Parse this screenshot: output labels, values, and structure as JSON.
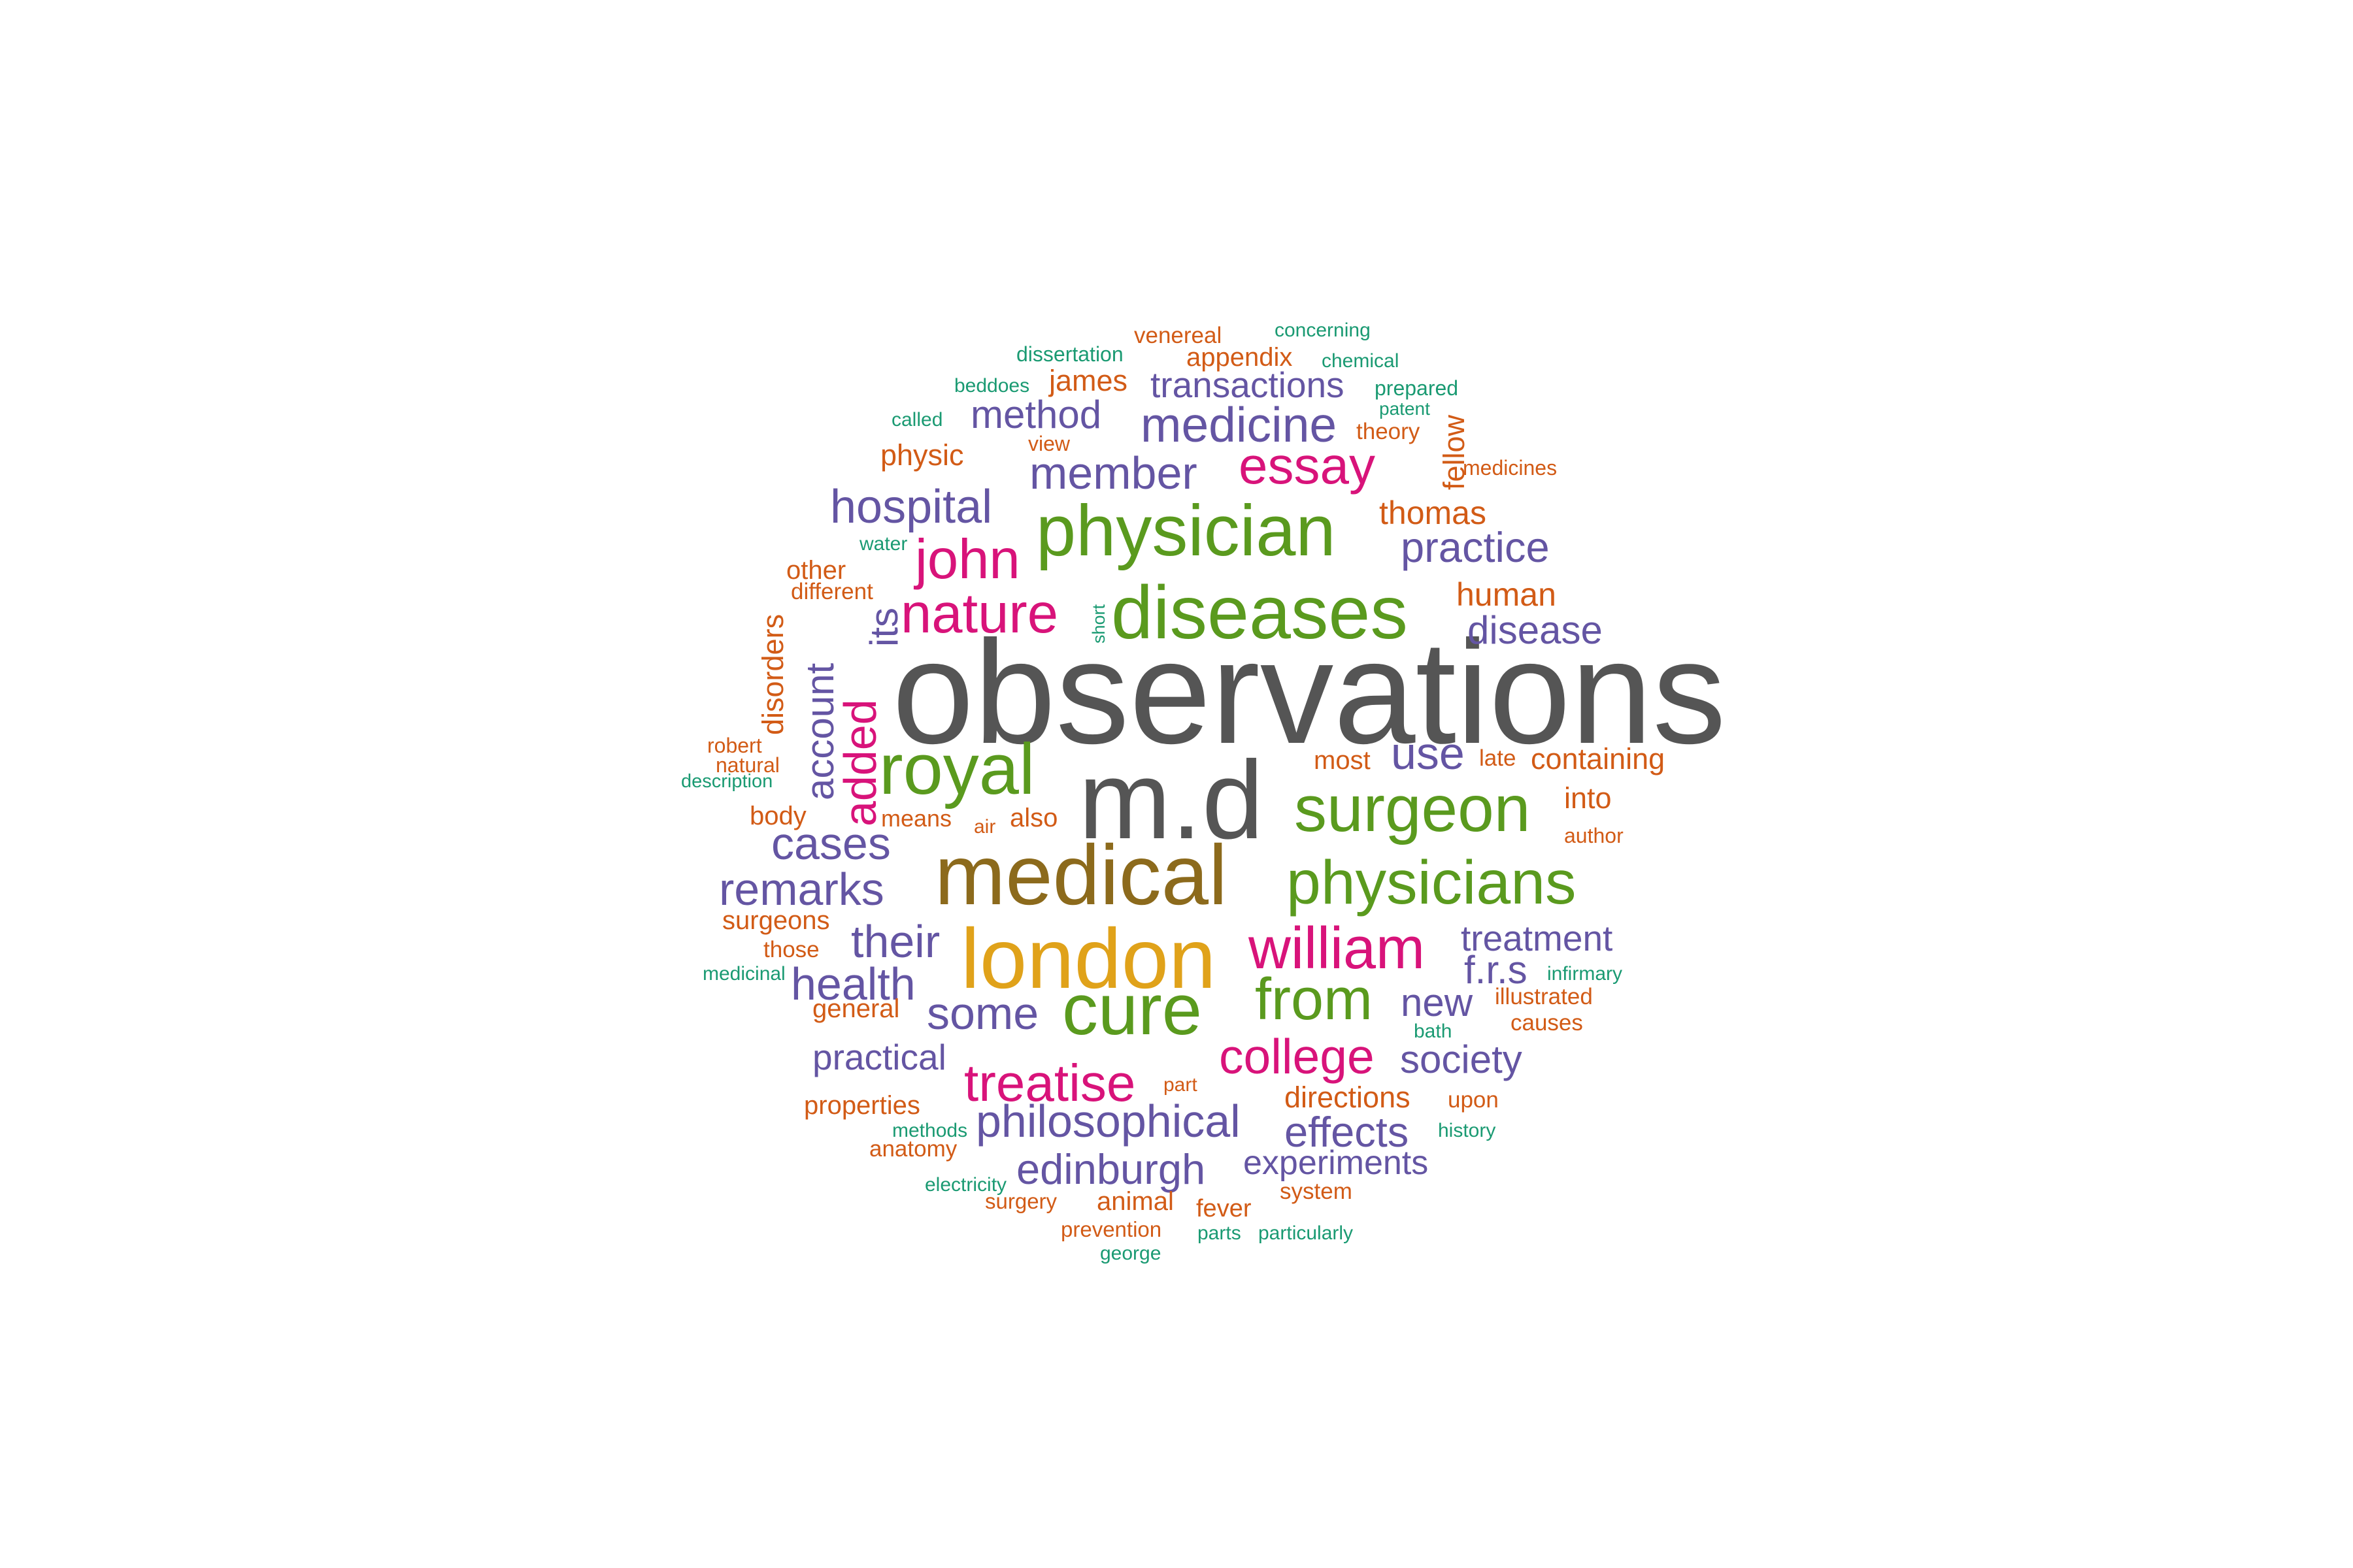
{
  "palette": {
    "gray": "#555555",
    "olive": "#8c6a1c",
    "gold": "#e0a21a",
    "green": "#5a9a1e",
    "magenta": "#d8137a",
    "purple": "#6455a3",
    "orange": "#d25b16",
    "teal": "#1a9a72"
  },
  "words": [
    {
      "text": "observations",
      "color": "gray"
    },
    {
      "text": "m.d",
      "color": "gray"
    },
    {
      "text": "medical",
      "color": "olive"
    },
    {
      "text": "london",
      "color": "gold"
    },
    {
      "text": "diseases",
      "color": "green"
    },
    {
      "text": "physician",
      "color": "green"
    },
    {
      "text": "surgeon",
      "color": "green"
    },
    {
      "text": "physicians",
      "color": "green"
    },
    {
      "text": "royal",
      "color": "green"
    },
    {
      "text": "cure",
      "color": "green"
    },
    {
      "text": "from",
      "color": "green"
    },
    {
      "text": "william",
      "color": "magenta"
    },
    {
      "text": "nature",
      "color": "magenta"
    },
    {
      "text": "john",
      "color": "magenta"
    },
    {
      "text": "essay",
      "color": "magenta"
    },
    {
      "text": "treatise",
      "color": "magenta"
    },
    {
      "text": "college",
      "color": "magenta"
    },
    {
      "text": "added",
      "color": "magenta"
    },
    {
      "text": "medicine",
      "color": "purple"
    },
    {
      "text": "member",
      "color": "purple"
    },
    {
      "text": "hospital",
      "color": "purple"
    },
    {
      "text": "method",
      "color": "purple"
    },
    {
      "text": "transactions",
      "color": "purple"
    },
    {
      "text": "practice",
      "color": "purple"
    },
    {
      "text": "disease",
      "color": "purple"
    },
    {
      "text": "use",
      "color": "purple"
    },
    {
      "text": "account",
      "color": "purple"
    },
    {
      "text": "its",
      "color": "purple"
    },
    {
      "text": "cases",
      "color": "purple"
    },
    {
      "text": "remarks",
      "color": "purple"
    },
    {
      "text": "their",
      "color": "purple"
    },
    {
      "text": "health",
      "color": "purple"
    },
    {
      "text": "some",
      "color": "purple"
    },
    {
      "text": "treatment",
      "color": "purple"
    },
    {
      "text": "f.r.s",
      "color": "purple"
    },
    {
      "text": "new",
      "color": "purple"
    },
    {
      "text": "practical",
      "color": "purple"
    },
    {
      "text": "society",
      "color": "purple"
    },
    {
      "text": "philosophical",
      "color": "purple"
    },
    {
      "text": "effects",
      "color": "purple"
    },
    {
      "text": "edinburgh",
      "color": "purple"
    },
    {
      "text": "experiments",
      "color": "purple"
    },
    {
      "text": "venereal",
      "color": "orange"
    },
    {
      "text": "appendix",
      "color": "orange"
    },
    {
      "text": "james",
      "color": "orange"
    },
    {
      "text": "physic",
      "color": "orange"
    },
    {
      "text": "view",
      "color": "orange"
    },
    {
      "text": "theory",
      "color": "orange"
    },
    {
      "text": "fellow",
      "color": "orange"
    },
    {
      "text": "thomas",
      "color": "orange"
    },
    {
      "text": "other",
      "color": "orange"
    },
    {
      "text": "different",
      "color": "orange"
    },
    {
      "text": "human",
      "color": "orange"
    },
    {
      "text": "disorders",
      "color": "orange"
    },
    {
      "text": "robert",
      "color": "orange"
    },
    {
      "text": "natural",
      "color": "orange"
    },
    {
      "text": "body",
      "color": "orange"
    },
    {
      "text": "means",
      "color": "orange"
    },
    {
      "text": "also",
      "color": "orange"
    },
    {
      "text": "most",
      "color": "orange"
    },
    {
      "text": "late",
      "color": "orange"
    },
    {
      "text": "containing",
      "color": "orange"
    },
    {
      "text": "into",
      "color": "orange"
    },
    {
      "text": "author",
      "color": "orange"
    },
    {
      "text": "surgeons",
      "color": "orange"
    },
    {
      "text": "those",
      "color": "orange"
    },
    {
      "text": "general",
      "color": "orange"
    },
    {
      "text": "illustrated",
      "color": "orange"
    },
    {
      "text": "causes",
      "color": "orange"
    },
    {
      "text": "properties",
      "color": "orange"
    },
    {
      "text": "directions",
      "color": "orange"
    },
    {
      "text": "upon",
      "color": "orange"
    },
    {
      "text": "anatomy",
      "color": "orange"
    },
    {
      "text": "animal",
      "color": "orange"
    },
    {
      "text": "fever",
      "color": "orange"
    },
    {
      "text": "system",
      "color": "orange"
    },
    {
      "text": "surgery",
      "color": "orange"
    },
    {
      "text": "prevention",
      "color": "orange"
    },
    {
      "text": "part",
      "color": "orange"
    },
    {
      "text": "dissertation",
      "color": "teal"
    },
    {
      "text": "concerning",
      "color": "teal"
    },
    {
      "text": "chemical",
      "color": "teal"
    },
    {
      "text": "beddoes",
      "color": "teal"
    },
    {
      "text": "prepared",
      "color": "teal"
    },
    {
      "text": "patent",
      "color": "teal"
    },
    {
      "text": "called",
      "color": "teal"
    },
    {
      "text": "medicines",
      "color": "orange"
    },
    {
      "text": "water",
      "color": "teal"
    },
    {
      "text": "short",
      "color": "teal"
    },
    {
      "text": "description",
      "color": "teal"
    },
    {
      "text": "air",
      "color": "orange"
    },
    {
      "text": "medicinal",
      "color": "teal"
    },
    {
      "text": "infirmary",
      "color": "teal"
    },
    {
      "text": "bath",
      "color": "teal"
    },
    {
      "text": "methods",
      "color": "teal"
    },
    {
      "text": "history",
      "color": "teal"
    },
    {
      "text": "electricity",
      "color": "teal"
    },
    {
      "text": "parts",
      "color": "teal"
    },
    {
      "text": "particularly",
      "color": "teal"
    },
    {
      "text": "george",
      "color": "teal"
    }
  ]
}
